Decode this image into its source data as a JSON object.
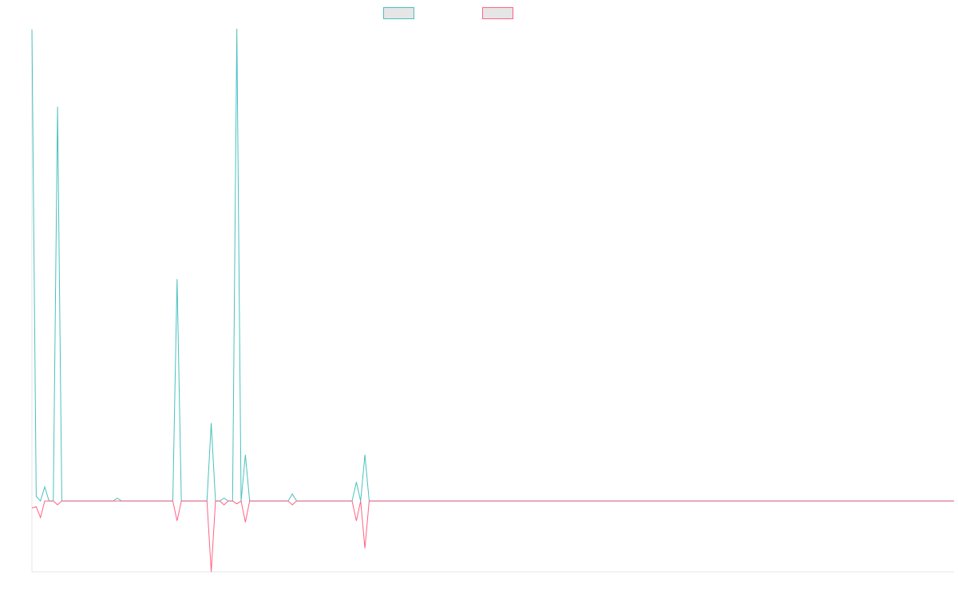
{
  "chart_data": {
    "type": "line",
    "title": "",
    "xlabel": "",
    "ylabel": "",
    "x_points": 217,
    "ylim": [
      -0.15,
      1.0
    ],
    "grid": false,
    "legend_position": "top-center",
    "series": [
      {
        "label": "",
        "color": "#4bc0c0",
        "sparse_values": [
          [
            0,
            0.998
          ],
          [
            1,
            0.01
          ],
          [
            2,
            0.0
          ],
          [
            3,
            0.03
          ],
          [
            4,
            0.0
          ],
          [
            5,
            0.0
          ],
          [
            6,
            0.835
          ],
          [
            7,
            0.0
          ],
          [
            19,
            0.0
          ],
          [
            20,
            0.006
          ],
          [
            21,
            0.0
          ],
          [
            33,
            0.0
          ],
          [
            34,
            0.47
          ],
          [
            35,
            0.0
          ],
          [
            41,
            0.0
          ],
          [
            42,
            0.165
          ],
          [
            43,
            0.0
          ],
          [
            44,
            0.0
          ],
          [
            45,
            0.006
          ],
          [
            46,
            0.0
          ],
          [
            47,
            0.0
          ],
          [
            48,
            1.0
          ],
          [
            49,
            0.0
          ],
          [
            50,
            0.098
          ],
          [
            51,
            0.0
          ],
          [
            60,
            0.0
          ],
          [
            61,
            0.015
          ],
          [
            62,
            0.0
          ],
          [
            75,
            0.0
          ],
          [
            76,
            0.04
          ],
          [
            77,
            0.0
          ],
          [
            78,
            0.098
          ],
          [
            79,
            0.0
          ]
        ]
      },
      {
        "label": "",
        "color": "#ff6384",
        "sparse_values": [
          [
            0,
            -0.015
          ],
          [
            1,
            -0.012
          ],
          [
            2,
            -0.035
          ],
          [
            3,
            0.0
          ],
          [
            4,
            0.0
          ],
          [
            5,
            0.0
          ],
          [
            6,
            -0.008
          ],
          [
            7,
            0.0
          ],
          [
            33,
            0.0
          ],
          [
            34,
            -0.042
          ],
          [
            35,
            0.0
          ],
          [
            41,
            0.0
          ],
          [
            42,
            -0.15
          ],
          [
            43,
            0.0
          ],
          [
            44,
            0.0
          ],
          [
            45,
            -0.008
          ],
          [
            46,
            0.0
          ],
          [
            47,
            0.0
          ],
          [
            48,
            -0.006
          ],
          [
            49,
            0.0
          ],
          [
            50,
            -0.045
          ],
          [
            51,
            0.0
          ],
          [
            60,
            0.0
          ],
          [
            61,
            -0.008
          ],
          [
            62,
            0.0
          ],
          [
            75,
            0.0
          ],
          [
            76,
            -0.042
          ],
          [
            77,
            0.0
          ],
          [
            78,
            -0.1
          ],
          [
            79,
            0.0
          ]
        ]
      }
    ]
  }
}
